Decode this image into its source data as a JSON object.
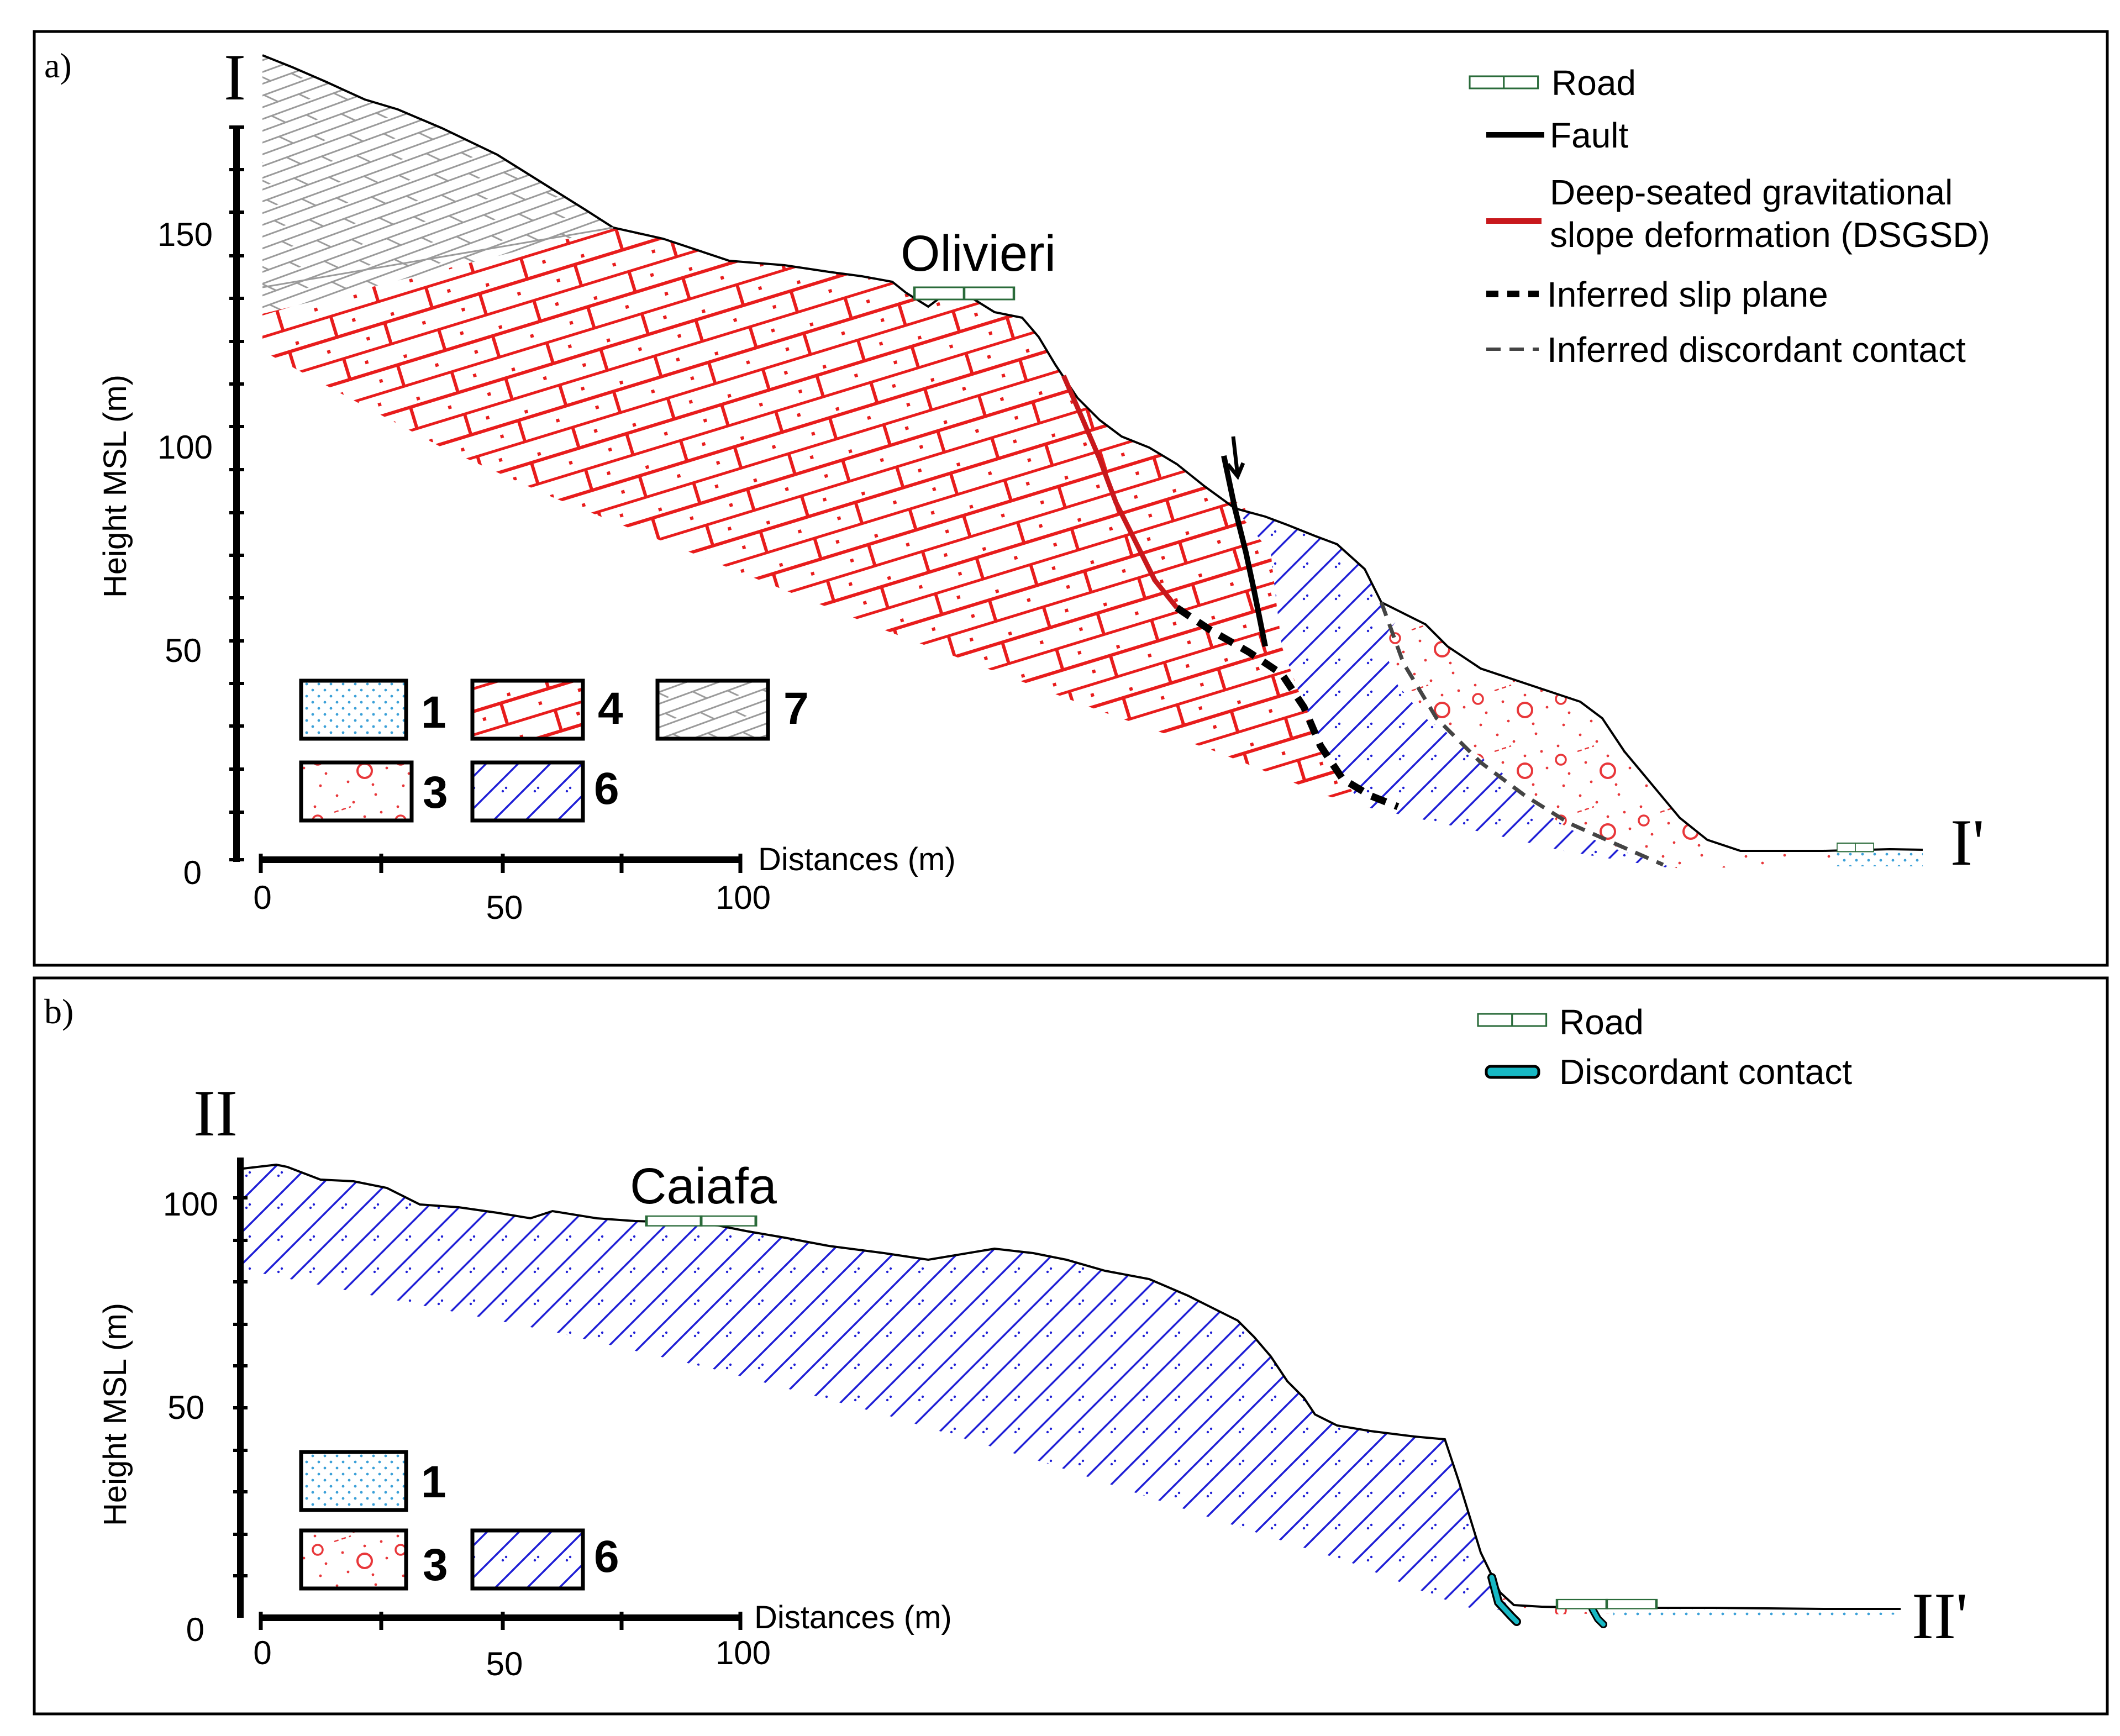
{
  "panel_a": {
    "label": "a)",
    "section_start": "I",
    "section_end": "I'",
    "place": "Olivieri",
    "y_axis_title": "Height MSL (m)",
    "x_axis_title": "Distances (m)",
    "y_ticks": [
      "0",
      "50",
      "100",
      "150"
    ],
    "x_ticks": [
      "0",
      "50",
      "100"
    ],
    "legend": [
      {
        "key": "road",
        "text": "Road"
      },
      {
        "key": "fault",
        "text": "Fault"
      },
      {
        "key": "dsgsd_line1",
        "text": "Deep-seated gravitational"
      },
      {
        "key": "dsgsd_line2",
        "text": "slope deformation (DSGSD)"
      },
      {
        "key": "slip",
        "text": "Inferred slip plane"
      },
      {
        "key": "contact",
        "text": "Inferred discordant contact"
      }
    ],
    "units": [
      "1",
      "4",
      "7",
      "3",
      "6"
    ]
  },
  "panel_b": {
    "label": "b)",
    "section_start": "II",
    "section_end": "II'",
    "place": "Caiafa",
    "y_axis_title": "Height MSL (m)",
    "x_axis_title": "Distances (m)",
    "y_ticks": [
      "0",
      "50",
      "100"
    ],
    "x_ticks": [
      "0",
      "50",
      "100"
    ],
    "legend": [
      {
        "key": "road",
        "text": "Road"
      },
      {
        "key": "contact",
        "text": "Discordant contact"
      }
    ],
    "units": [
      "1",
      "3",
      "6"
    ]
  },
  "colors": {
    "unit_1": "#3aa0d8",
    "unit_3": "#e8373a",
    "unit_4": "#e81c1c",
    "unit_6": "#1f1fd6",
    "unit_7": "#9a9a9a",
    "dsgsd": "#c8181c",
    "fault": "#000000",
    "discordant_contact": "#17b8c4"
  }
}
